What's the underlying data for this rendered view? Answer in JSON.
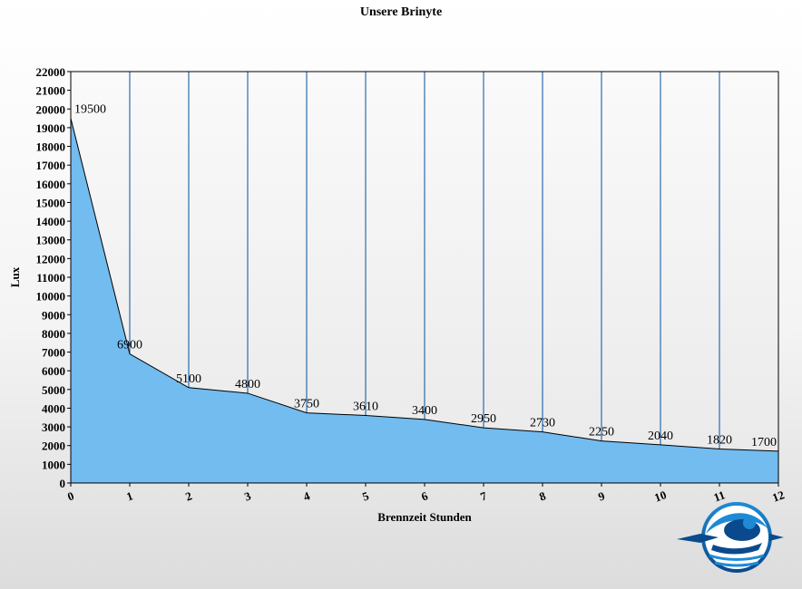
{
  "chart_data": {
    "type": "area",
    "title": "Unsere Brinyte",
    "xlabel": "Brennzeit Stunden",
    "ylabel": "Lux",
    "x": [
      0,
      1,
      2,
      3,
      4,
      5,
      6,
      7,
      8,
      9,
      10,
      11,
      12
    ],
    "values": [
      19500,
      6900,
      5100,
      4800,
      3750,
      3610,
      3400,
      2950,
      2730,
      2250,
      2040,
      1820,
      1700
    ],
    "xlim": [
      0,
      12
    ],
    "ylim": [
      0,
      22000
    ],
    "ytick_step": 1000,
    "grid": "vertical",
    "colors": {
      "fill": "#72bcf0",
      "line": "#000000",
      "grid": "#0050a0"
    }
  },
  "logo": {
    "icon": "diver-logo-icon",
    "colors": [
      "#0a4a8c",
      "#1e8ad6"
    ]
  }
}
